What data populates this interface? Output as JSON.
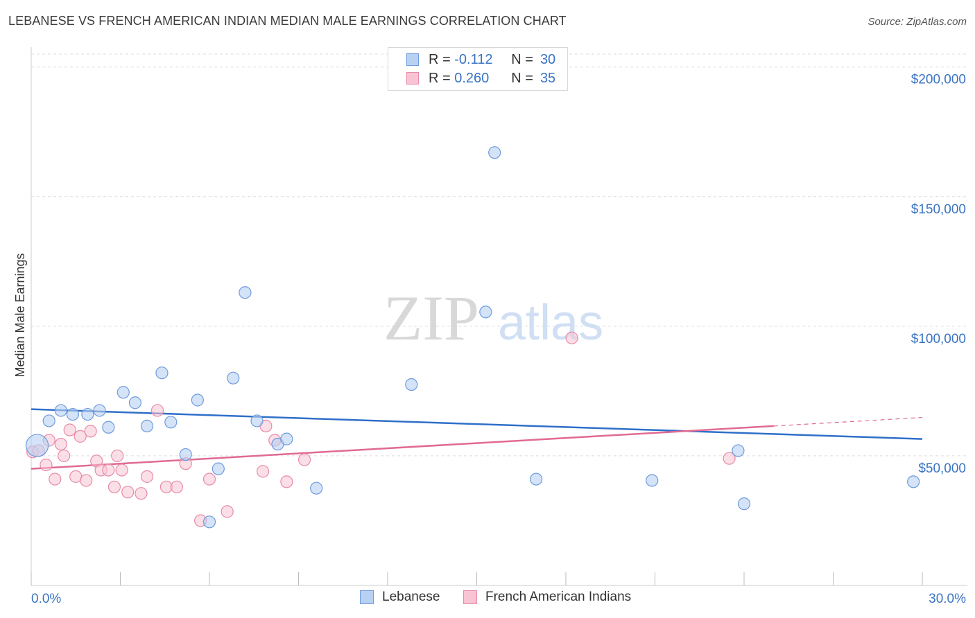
{
  "title": "LEBANESE VS FRENCH AMERICAN INDIAN MEDIAN MALE EARNINGS CORRELATION CHART",
  "source": "Source: ZipAtlas.com",
  "watermark": {
    "zip": "ZIP",
    "atlas": "atlas"
  },
  "legend": {
    "row1": {
      "r_label": "R =",
      "r_value": "-0.112",
      "n_label": "N =",
      "n_value": "30"
    },
    "row2": {
      "r_label": "R =",
      "r_value": "0.260",
      "n_label": "N =",
      "n_value": "35"
    }
  },
  "colors": {
    "blue_fill": "#b8d0f2",
    "blue_stroke": "#6f9bdc",
    "blue_line": "#2f6fc9",
    "pink_fill": "#f8c4d3",
    "pink_stroke": "#e98aa8",
    "pink_line": "#e06a93",
    "tick_text": "#3a73c4",
    "grid": "#dddddd"
  },
  "chart_data": {
    "type": "scatter",
    "title": "LEBANESE VS FRENCH AMERICAN INDIAN MEDIAN MALE EARNINGS CORRELATION CHART",
    "xlabel": "",
    "ylabel": "Median Male Earnings",
    "xlim": [
      0,
      30
    ],
    "ylim": [
      0,
      205000
    ],
    "x_tick_labels": [
      "0.0%",
      "30.0%"
    ],
    "y_ticks": [
      {
        "value": 50000,
        "label": "$50,000"
      },
      {
        "value": 100000,
        "label": "$100,000"
      },
      {
        "value": 150000,
        "label": "$150,000"
      },
      {
        "value": 200000,
        "label": "$200,000"
      }
    ],
    "grid": true,
    "legend_position": "top-center",
    "series": [
      {
        "name": "Lebanese",
        "color": "#6f9bdc",
        "r": -0.112,
        "n": 30,
        "trend": {
          "x": [
            0,
            30
          ],
          "y": [
            68000,
            56500
          ],
          "dashed_from": null
        },
        "points": [
          [
            0.2,
            54000
          ],
          [
            0.6,
            63500
          ],
          [
            1.0,
            67500
          ],
          [
            1.4,
            66000
          ],
          [
            1.9,
            66000
          ],
          [
            2.3,
            67500
          ],
          [
            2.6,
            61000
          ],
          [
            3.1,
            74500
          ],
          [
            3.5,
            70500
          ],
          [
            3.9,
            61500
          ],
          [
            4.4,
            82000
          ],
          [
            4.7,
            63000
          ],
          [
            5.2,
            50500
          ],
          [
            5.6,
            71500
          ],
          [
            6.0,
            24500
          ],
          [
            6.3,
            45000
          ],
          [
            6.8,
            80000
          ],
          [
            7.2,
            113000
          ],
          [
            7.6,
            63500
          ],
          [
            8.3,
            54500
          ],
          [
            8.6,
            56500
          ],
          [
            9.6,
            37500
          ],
          [
            12.8,
            77500
          ],
          [
            15.3,
            105500
          ],
          [
            15.6,
            167000
          ],
          [
            17.0,
            41000
          ],
          [
            20.9,
            40500
          ],
          [
            23.8,
            52000
          ],
          [
            24.0,
            31500
          ],
          [
            29.7,
            40000
          ]
        ]
      },
      {
        "name": "French American Indians",
        "color": "#e98aa8",
        "r": 0.26,
        "n": 35,
        "trend": {
          "x": [
            0,
            25
          ],
          "y": [
            45000,
            61500
          ],
          "dashed_to": [
            30,
            64800
          ]
        },
        "points": [
          [
            0.05,
            51500
          ],
          [
            0.25,
            52000
          ],
          [
            0.5,
            46500
          ],
          [
            0.6,
            56000
          ],
          [
            0.8,
            41000
          ],
          [
            1.0,
            54500
          ],
          [
            1.1,
            50000
          ],
          [
            1.3,
            60000
          ],
          [
            1.5,
            42000
          ],
          [
            1.65,
            57500
          ],
          [
            1.85,
            40500
          ],
          [
            2.0,
            59500
          ],
          [
            2.2,
            48000
          ],
          [
            2.35,
            44500
          ],
          [
            2.6,
            44500
          ],
          [
            2.8,
            38000
          ],
          [
            2.9,
            50000
          ],
          [
            3.05,
            44500
          ],
          [
            3.25,
            36000
          ],
          [
            3.7,
            35500
          ],
          [
            3.9,
            42000
          ],
          [
            4.25,
            67500
          ],
          [
            4.55,
            38000
          ],
          [
            4.9,
            38000
          ],
          [
            5.2,
            47000
          ],
          [
            5.7,
            25000
          ],
          [
            6.0,
            41000
          ],
          [
            6.6,
            28500
          ],
          [
            7.8,
            44000
          ],
          [
            7.9,
            61500
          ],
          [
            8.2,
            56000
          ],
          [
            8.6,
            40000
          ],
          [
            9.2,
            48500
          ],
          [
            18.2,
            95500
          ],
          [
            23.5,
            49000
          ]
        ]
      }
    ]
  }
}
